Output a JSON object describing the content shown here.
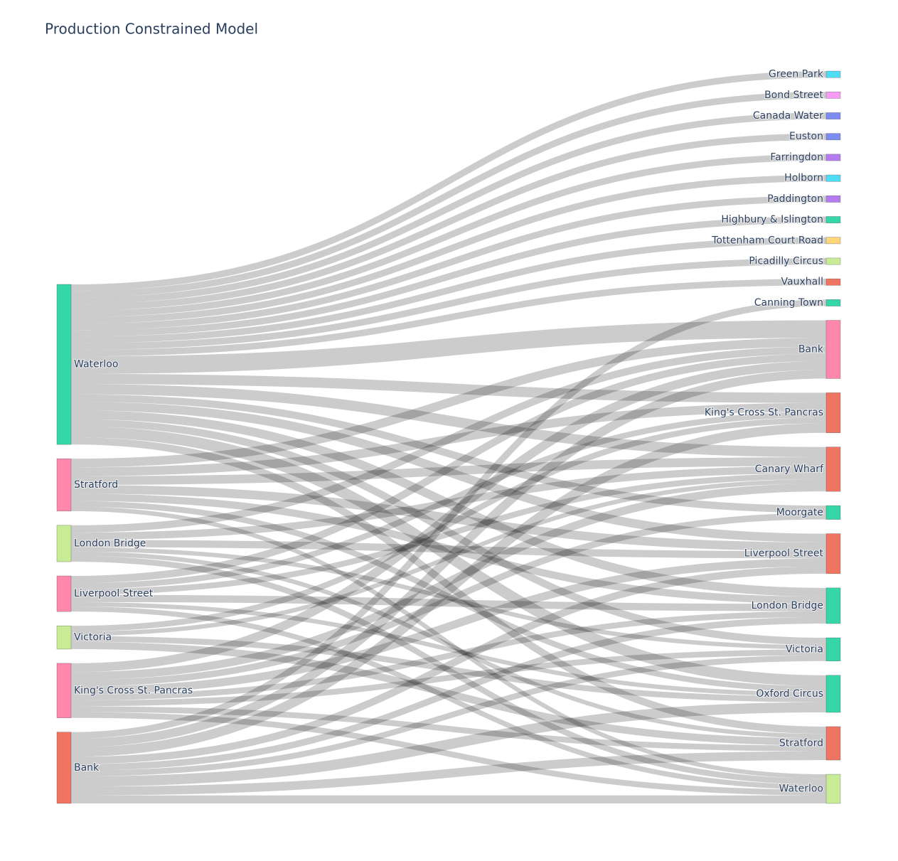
{
  "chart_data": {
    "type": "sankey",
    "title": "Production Constrained Model",
    "link_color": "rgba(0,0,0,0.2)",
    "nodes": [
      {
        "label": "Waterloo",
        "color": "#35d6a8"
      },
      {
        "label": "Stratford",
        "color": "#ff87ab"
      },
      {
        "label": "London Bridge",
        "color": "#c8eb96"
      },
      {
        "label": "Liverpool Street",
        "color": "#ff87ab"
      },
      {
        "label": "Victoria",
        "color": "#c8eb96"
      },
      {
        "label": "King's Cross St. Pancras",
        "color": "#ff87ab"
      },
      {
        "label": "Bank",
        "color": "#ef7461"
      },
      {
        "label": "Green Park",
        "color": "#4fdcf4"
      },
      {
        "label": "Bond Street",
        "color": "#f79cf4"
      },
      {
        "label": "Canada Water",
        "color": "#7d8cf0"
      },
      {
        "label": "Euston",
        "color": "#7d8cf0"
      },
      {
        "label": "Farringdon",
        "color": "#b57cf0"
      },
      {
        "label": "Holborn",
        "color": "#4fdcf4"
      },
      {
        "label": "Paddington",
        "color": "#b57cf0"
      },
      {
        "label": "Highbury & Islington",
        "color": "#35d6a8"
      },
      {
        "label": "Tottenham Court Road",
        "color": "#ffd67a"
      },
      {
        "label": "Picadilly Circus",
        "color": "#c8eb96"
      },
      {
        "label": "Vauxhall",
        "color": "#ef7461"
      },
      {
        "label": "Canning Town",
        "color": "#35d6a8"
      },
      {
        "label": "Bank",
        "color": "#ff87ab"
      },
      {
        "label": "King's Cross St. Pancras",
        "color": "#ef7461"
      },
      {
        "label": "Canary Wharf",
        "color": "#ef7461"
      },
      {
        "label": "Moorgate",
        "color": "#35d6a8"
      },
      {
        "label": "Liverpool Street",
        "color": "#ef7461"
      },
      {
        "label": "London Bridge",
        "color": "#35d6a8"
      },
      {
        "label": "Victoria",
        "color": "#35d6a8"
      },
      {
        "label": "Oxford Circus",
        "color": "#35d6a8"
      },
      {
        "label": "Stratford",
        "color": "#ef7461"
      },
      {
        "label": "Waterloo",
        "color": "#c8eb96"
      }
    ],
    "links": [
      {
        "source": 0,
        "target": 7,
        "value": 9
      },
      {
        "source": 0,
        "target": 8,
        "value": 9
      },
      {
        "source": 0,
        "target": 9,
        "value": 9
      },
      {
        "source": 0,
        "target": 10,
        "value": 9
      },
      {
        "source": 0,
        "target": 11,
        "value": 9
      },
      {
        "source": 0,
        "target": 12,
        "value": 9
      },
      {
        "source": 0,
        "target": 13,
        "value": 9
      },
      {
        "source": 0,
        "target": 14,
        "value": 9
      },
      {
        "source": 0,
        "target": 15,
        "value": 9
      },
      {
        "source": 0,
        "target": 16,
        "value": 9
      },
      {
        "source": 0,
        "target": 17,
        "value": 9
      },
      {
        "source": 0,
        "target": 19,
        "value": 24
      },
      {
        "source": 0,
        "target": 20,
        "value": 14
      },
      {
        "source": 0,
        "target": 21,
        "value": 14
      },
      {
        "source": 0,
        "target": 22,
        "value": 10
      },
      {
        "source": 0,
        "target": 23,
        "value": 12
      },
      {
        "source": 0,
        "target": 24,
        "value": 12
      },
      {
        "source": 0,
        "target": 25,
        "value": 10
      },
      {
        "source": 0,
        "target": 26,
        "value": 15
      },
      {
        "source": 0,
        "target": 27,
        "value": 10
      },
      {
        "source": 1,
        "target": 19,
        "value": 12
      },
      {
        "source": 1,
        "target": 20,
        "value": 12
      },
      {
        "source": 1,
        "target": 21,
        "value": 12
      },
      {
        "source": 1,
        "target": 23,
        "value": 12
      },
      {
        "source": 1,
        "target": 24,
        "value": 10
      },
      {
        "source": 1,
        "target": 26,
        "value": 8
      },
      {
        "source": 1,
        "target": 28,
        "value": 6
      },
      {
        "source": 2,
        "target": 19,
        "value": 10
      },
      {
        "source": 2,
        "target": 21,
        "value": 10
      },
      {
        "source": 2,
        "target": 23,
        "value": 10
      },
      {
        "source": 2,
        "target": 25,
        "value": 6
      },
      {
        "source": 2,
        "target": 27,
        "value": 6
      },
      {
        "source": 2,
        "target": 28,
        "value": 8
      },
      {
        "source": 3,
        "target": 19,
        "value": 10
      },
      {
        "source": 3,
        "target": 20,
        "value": 8
      },
      {
        "source": 3,
        "target": 21,
        "value": 8
      },
      {
        "source": 3,
        "target": 24,
        "value": 10
      },
      {
        "source": 3,
        "target": 26,
        "value": 6
      },
      {
        "source": 3,
        "target": 28,
        "value": 7
      },
      {
        "source": 4,
        "target": 20,
        "value": 8
      },
      {
        "source": 4,
        "target": 21,
        "value": 6
      },
      {
        "source": 4,
        "target": 26,
        "value": 8
      },
      {
        "source": 4,
        "target": 27,
        "value": 10
      },
      {
        "source": 5,
        "target": 19,
        "value": 12
      },
      {
        "source": 5,
        "target": 21,
        "value": 11
      },
      {
        "source": 5,
        "target": 22,
        "value": 9
      },
      {
        "source": 5,
        "target": 23,
        "value": 11
      },
      {
        "source": 5,
        "target": 24,
        "value": 8
      },
      {
        "source": 5,
        "target": 25,
        "value": 8
      },
      {
        "source": 5,
        "target": 27,
        "value": 8
      },
      {
        "source": 5,
        "target": 28,
        "value": 8
      },
      {
        "source": 6,
        "target": 18,
        "value": 9
      },
      {
        "source": 6,
        "target": 19,
        "value": 12
      },
      {
        "source": 6,
        "target": 20,
        "value": 13
      },
      {
        "source": 6,
        "target": 23,
        "value": 10
      },
      {
        "source": 6,
        "target": 24,
        "value": 9
      },
      {
        "source": 6,
        "target": 25,
        "value": 8
      },
      {
        "source": 6,
        "target": 26,
        "value": 14
      },
      {
        "source": 6,
        "target": 27,
        "value": 12
      },
      {
        "source": 6,
        "target": 28,
        "value": 11
      }
    ]
  }
}
